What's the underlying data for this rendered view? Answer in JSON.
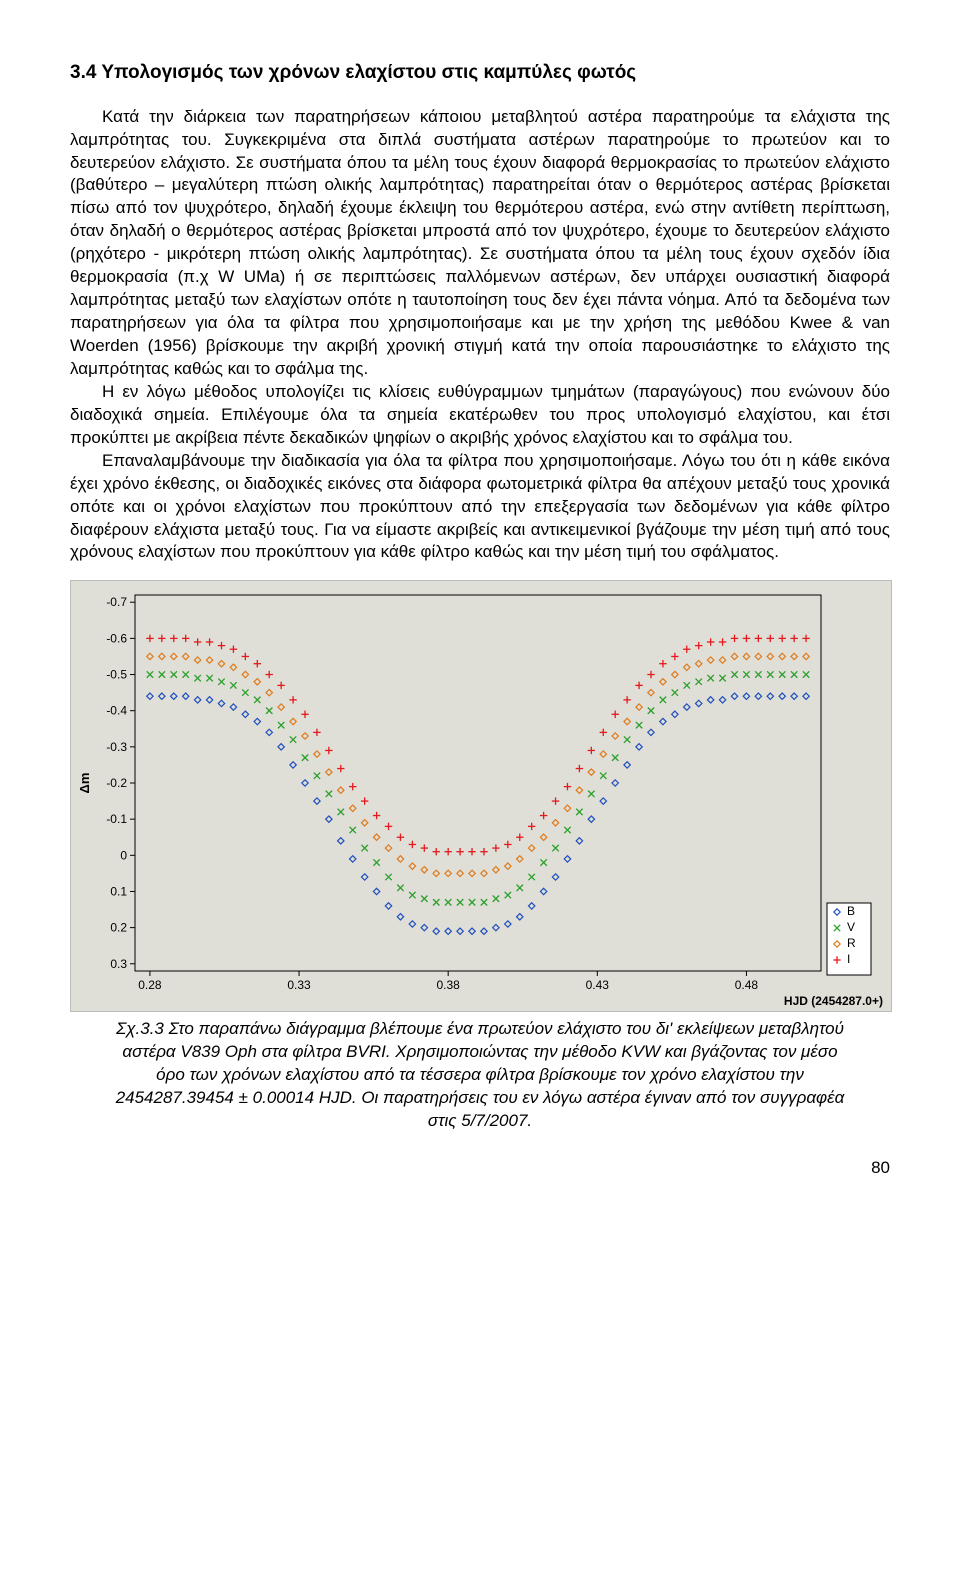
{
  "section_heading": "3.4 Υπολογισμός των χρόνων ελαχίστου στις καμπύλες φωτός",
  "para1": "Κατά την διάρκεια των παρατηρήσεων κάποιου μεταβλητού αστέρα παρατηρούμε τα ελάχιστα της λαμπρότητας του. Συγκεκριμένα στα διπλά συστήματα αστέρων παρατηρούμε  το πρωτεύον και το δευτερεύον ελάχιστο. Σε συστήματα όπου τα μέλη τους έχουν διαφορά θερμοκρασίας το πρωτεύον ελάχιστο (βαθύτερο – μεγαλύτερη πτώση ολικής λαμπρότητας) παρατηρείται όταν ο θερμότερος αστέρας βρίσκεται πίσω από τον ψυχρότερο, δηλαδή έχουμε έκλειψη του θερμότερου αστέρα, ενώ στην αντίθετη περίπτωση, όταν δηλαδή ο θερμότερος αστέρας βρίσκεται μπροστά από τον ψυχρότερο, έχουμε το δευτερεύον ελάχιστο (ρηχότερο - μικρότερη πτώση ολικής λαμπρότητας). Σε συστήματα όπου τα μέλη τους έχουν σχεδόν ίδια θερμοκρασία (π.χ W UMa) ή σε περιπτώσεις παλλόμενων αστέρων, δεν υπάρχει ουσιαστική διαφορά λαμπρότητας μεταξύ των ελαχίστων οπότε η ταυτοποίηση τους δεν έχει πάντα νόημα. Από  τα δεδομένα των παρατηρήσεων για όλα τα φίλτρα που χρησιμοποιήσαμε και με την χρήση της μεθόδου Kwee & van Woerden (1956) βρίσκουμε την ακριβή χρονική στιγμή κατά την οποία παρουσιάστηκε το ελάχιστο της λαμπρότητας καθώς και το σφάλμα της.",
  "para2": "Η εν λόγω μέθοδος υπολογίζει τις κλίσεις ευθύγραμμων τμημάτων (παραγώγους) που ενώνουν δύο διαδοχικά σημεία. Επιλέγουμε όλα τα σημεία εκατέρωθεν του προς υπολογισμό ελαχίστου, και έτσι προκύπτει με ακρίβεια πέντε δεκαδικών ψηφίων ο ακριβής χρόνος ελαχίστου και το σφάλμα του.",
  "para3": "Επαναλαμβάνουμε την διαδικασία για όλα τα φίλτρα που χρησιμοποιήσαμε. Λόγω του ότι η κάθε εικόνα έχει χρόνο έκθεσης, οι διαδοχικές εικόνες στα διάφορα φωτομετρικά φίλτρα θα απέχουν μεταξύ τους χρονικά οπότε και οι χρόνοι ελαχίστων που προκύπτουν από την επεξεργασία των δεδομένων για κάθε φίλτρο διαφέρουν ελάχιστα μεταξύ τους. Για να είμαστε ακριβείς και αντικειμενικοί βγάζουμε την μέση τιμή από τους χρόνους ελαχίστων που προκύπτουν για κάθε φίλτρο καθώς και την μέση τιμή του σφάλματος.",
  "chart": {
    "type": "scatter",
    "background_color": "#dfded7",
    "axis_color": "#000000",
    "tick_font_size": 12,
    "axis_font_size": 13,
    "xlabel": "HJD (2454287.0+)",
    "ylabel": "Δm",
    "xlim": [
      0.275,
      0.505
    ],
    "ylim": [
      0.32,
      -0.72
    ],
    "xticks": [
      0.28,
      0.33,
      0.38,
      0.43,
      0.48
    ],
    "xtick_labels": [
      "0.28",
      "0.33",
      "0.38",
      "0.43",
      "0.48"
    ],
    "yticks": [
      -0.7,
      -0.6,
      -0.5,
      -0.4,
      -0.3,
      -0.2,
      -0.1,
      0,
      0.1,
      0.2,
      0.3
    ],
    "ytick_labels": [
      "-0.7",
      "-0.6",
      "-0.5",
      "-0.4",
      "-0.3",
      "-0.2",
      "-0.1",
      "0",
      "0.1",
      "0.2",
      "0.3"
    ],
    "x": [
      0.28,
      0.284,
      0.288,
      0.292,
      0.296,
      0.3,
      0.304,
      0.308,
      0.312,
      0.316,
      0.32,
      0.324,
      0.328,
      0.332,
      0.336,
      0.34,
      0.344,
      0.348,
      0.352,
      0.356,
      0.36,
      0.364,
      0.368,
      0.372,
      0.376,
      0.38,
      0.384,
      0.388,
      0.392,
      0.396,
      0.4,
      0.404,
      0.408,
      0.412,
      0.416,
      0.42,
      0.424,
      0.428,
      0.432,
      0.436,
      0.44,
      0.444,
      0.448,
      0.452,
      0.456,
      0.46,
      0.464,
      0.468,
      0.472,
      0.476,
      0.48,
      0.484,
      0.488,
      0.492,
      0.496,
      0.5
    ],
    "series": [
      {
        "name": "I",
        "color": "#e41a1c",
        "marker": "plus",
        "legend_label": "I",
        "y": [
          -0.6,
          -0.6,
          -0.6,
          -0.6,
          -0.59,
          -0.59,
          -0.58,
          -0.57,
          -0.55,
          -0.53,
          -0.5,
          -0.47,
          -0.43,
          -0.39,
          -0.34,
          -0.29,
          -0.24,
          -0.19,
          -0.15,
          -0.11,
          -0.08,
          -0.05,
          -0.03,
          -0.02,
          -0.01,
          -0.01,
          -0.01,
          -0.01,
          -0.01,
          -0.02,
          -0.03,
          -0.05,
          -0.08,
          -0.11,
          -0.15,
          -0.19,
          -0.24,
          -0.29,
          -0.34,
          -0.39,
          -0.43,
          -0.47,
          -0.5,
          -0.53,
          -0.55,
          -0.57,
          -0.58,
          -0.59,
          -0.59,
          -0.6,
          -0.6,
          -0.6,
          -0.6,
          -0.6,
          -0.6,
          -0.6
        ]
      },
      {
        "name": "R",
        "color": "#e07a1a",
        "marker": "diamond",
        "legend_label": "R",
        "y": [
          -0.55,
          -0.55,
          -0.55,
          -0.55,
          -0.54,
          -0.54,
          -0.53,
          -0.52,
          -0.5,
          -0.48,
          -0.45,
          -0.41,
          -0.37,
          -0.33,
          -0.28,
          -0.23,
          -0.18,
          -0.13,
          -0.09,
          -0.05,
          -0.02,
          0.01,
          0.03,
          0.04,
          0.05,
          0.05,
          0.05,
          0.05,
          0.05,
          0.04,
          0.03,
          0.01,
          -0.02,
          -0.05,
          -0.09,
          -0.13,
          -0.18,
          -0.23,
          -0.28,
          -0.33,
          -0.37,
          -0.41,
          -0.45,
          -0.48,
          -0.5,
          -0.52,
          -0.53,
          -0.54,
          -0.54,
          -0.55,
          -0.55,
          -0.55,
          -0.55,
          -0.55,
          -0.55,
          -0.55
        ]
      },
      {
        "name": "V",
        "color": "#2ca02c",
        "marker": "x",
        "legend_label": "V",
        "y": [
          -0.5,
          -0.5,
          -0.5,
          -0.5,
          -0.49,
          -0.49,
          -0.48,
          -0.47,
          -0.45,
          -0.43,
          -0.4,
          -0.36,
          -0.32,
          -0.27,
          -0.22,
          -0.17,
          -0.12,
          -0.07,
          -0.02,
          0.02,
          0.06,
          0.09,
          0.11,
          0.12,
          0.13,
          0.13,
          0.13,
          0.13,
          0.13,
          0.12,
          0.11,
          0.09,
          0.06,
          0.02,
          -0.02,
          -0.07,
          -0.12,
          -0.17,
          -0.22,
          -0.27,
          -0.32,
          -0.36,
          -0.4,
          -0.43,
          -0.45,
          -0.47,
          -0.48,
          -0.49,
          -0.49,
          -0.5,
          -0.5,
          -0.5,
          -0.5,
          -0.5,
          -0.5,
          -0.5
        ]
      },
      {
        "name": "B",
        "color": "#1f4fbf",
        "marker": "diamond",
        "legend_label": "B",
        "y": [
          -0.44,
          -0.44,
          -0.44,
          -0.44,
          -0.43,
          -0.43,
          -0.42,
          -0.41,
          -0.39,
          -0.37,
          -0.34,
          -0.3,
          -0.25,
          -0.2,
          -0.15,
          -0.1,
          -0.04,
          0.01,
          0.06,
          0.1,
          0.14,
          0.17,
          0.19,
          0.2,
          0.21,
          0.21,
          0.21,
          0.21,
          0.21,
          0.2,
          0.19,
          0.17,
          0.14,
          0.1,
          0.06,
          0.01,
          -0.04,
          -0.1,
          -0.15,
          -0.2,
          -0.25,
          -0.3,
          -0.34,
          -0.37,
          -0.39,
          -0.41,
          -0.42,
          -0.43,
          -0.43,
          -0.44,
          -0.44,
          -0.44,
          -0.44,
          -0.44,
          -0.44,
          -0.44
        ]
      }
    ],
    "legend": {
      "items": [
        {
          "label": "B",
          "color": "#1f4fbf",
          "marker": "diamond"
        },
        {
          "label": "V",
          "color": "#2ca02c",
          "marker": "x"
        },
        {
          "label": "R",
          "color": "#e07a1a",
          "marker": "diamond"
        },
        {
          "label": "I",
          "color": "#e41a1c",
          "marker": "plus"
        }
      ],
      "border_color": "#000000",
      "bg_color": "#ffffff"
    }
  },
  "caption": "Σχ.3.3 Στο παραπάνω διάγραμμα βλέπουμε ένα πρωτεύον ελάχιστο του δι' εκλείψεων μεταβλητού αστέρα V839 Oph στα φίλτρα BVRI. Χρησιμοποιώντας την μέθοδο KVW και βγάζοντας τον μέσο όρο των χρόνων ελαχίστου από τα τέσσερα φίλτρα βρίσκουμε τον χρόνο ελαχίστου την 2454287.39454 ± 0.00014 HJD. Οι παρατηρήσεις του εν λόγω αστέρα έγιναν από τον συγγραφέα στις 5/7/2007.",
  "page_number": "80"
}
